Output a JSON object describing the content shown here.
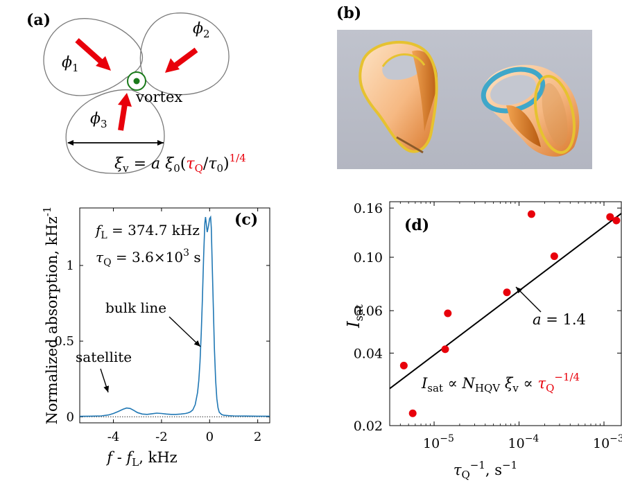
{
  "figure": {
    "panels": {
      "a": {
        "label": "(a)",
        "phi1": "ϕ1",
        "phi2": "ϕ2",
        "phi3": "ϕ3",
        "vortex": "vortex",
        "xi_formula": "ξv = a ξ0(τQ/τ0)1/4"
      },
      "b": {
        "label": "(b)"
      },
      "c": {
        "label": "(c)",
        "annotation_fL": "fL = 374.7 kHz",
        "annotation_tauQ": "τQ = 3.6×103 s",
        "bulk_line": "bulk line",
        "satellite": "satellite"
      },
      "d": {
        "label": "(d)",
        "fit_label": "a = 1.4",
        "law": "Isat ∝ NHQV ξv ∝ τQ−1/4"
      }
    },
    "colors": {
      "accent": "#e8000b",
      "line": "#1f77b4",
      "points": "#e8000b",
      "vortex": "#1a7a1a"
    }
  },
  "chart_data": [
    {
      "id": "c",
      "type": "line",
      "xlabel": "f - fL, kHz",
      "ylabel": "Normalized absorption, kHz-1",
      "xlim": [
        -5.4,
        2.5
      ],
      "ylim": [
        -0.04,
        1.38
      ],
      "xticks": [
        -4,
        -2,
        0,
        2
      ],
      "xtick_labels": [
        "-4",
        "-2",
        "0",
        "2"
      ],
      "yticks": [
        0,
        0.5,
        1
      ],
      "ytick_labels": [
        "0",
        "0.5",
        "1"
      ],
      "series": [
        {
          "x": [
            -5.4,
            -5.0,
            -4.5,
            -4.2,
            -4.0,
            -3.8,
            -3.6,
            -3.45,
            -3.3,
            -3.15,
            -3.0,
            -2.8,
            -2.6,
            -2.4,
            -2.2,
            -2.0,
            -1.8,
            -1.6,
            -1.4,
            -1.2,
            -1.0,
            -0.9,
            -0.8,
            -0.7,
            -0.6,
            -0.5,
            -0.45,
            -0.4,
            -0.35,
            -0.3,
            -0.25,
            -0.2,
            -0.17,
            -0.14,
            -0.1,
            -0.05,
            0.0,
            0.04,
            0.07,
            0.1,
            0.15,
            0.2,
            0.25,
            0.3,
            0.35,
            0.4,
            0.5,
            0.6,
            0.8,
            1.0,
            1.5,
            2.0,
            2.5
          ],
          "y": [
            0.003,
            0.004,
            0.006,
            0.012,
            0.022,
            0.035,
            0.05,
            0.058,
            0.055,
            0.042,
            0.028,
            0.018,
            0.016,
            0.02,
            0.024,
            0.022,
            0.018,
            0.016,
            0.016,
            0.018,
            0.022,
            0.026,
            0.032,
            0.045,
            0.08,
            0.16,
            0.24,
            0.36,
            0.55,
            0.78,
            1.05,
            1.28,
            1.32,
            1.28,
            1.22,
            1.26,
            1.31,
            1.32,
            1.25,
            1.05,
            0.75,
            0.45,
            0.24,
            0.12,
            0.06,
            0.03,
            0.015,
            0.01,
            0.007,
            0.006,
            0.005,
            0.004,
            0.004
          ]
        }
      ]
    },
    {
      "id": "d",
      "type": "scatter",
      "xscale": "log",
      "yscale": "log",
      "xlabel": "τQ−1, s−1",
      "ylabel": "Isat",
      "xlim": [
        3e-06,
        0.0016
      ],
      "ylim": [
        0.02,
        0.17
      ],
      "xticks": [
        1e-05,
        0.0001,
        0.001
      ],
      "xtick_labels": [
        "10−5",
        "10−4",
        "10−3"
      ],
      "yticks": [
        0.02,
        0.04,
        0.06,
        0.1,
        0.16
      ],
      "ytick_labels": [
        "0.02",
        "0.04",
        "0.06",
        "0.10",
        "0.16"
      ],
      "points": {
        "x": [
          4.4e-06,
          5.6e-06,
          1.35e-05,
          1.45e-05,
          7.2e-05,
          0.00014,
          0.00026,
          0.00118,
          0.0014
        ],
        "y": [
          0.0355,
          0.0225,
          0.0415,
          0.0585,
          0.0715,
          0.151,
          0.101,
          0.147,
          0.142
        ]
      },
      "fit": {
        "x": [
          3e-06,
          0.0016
        ],
        "y": [
          0.0285,
          0.152
        ]
      }
    }
  ]
}
